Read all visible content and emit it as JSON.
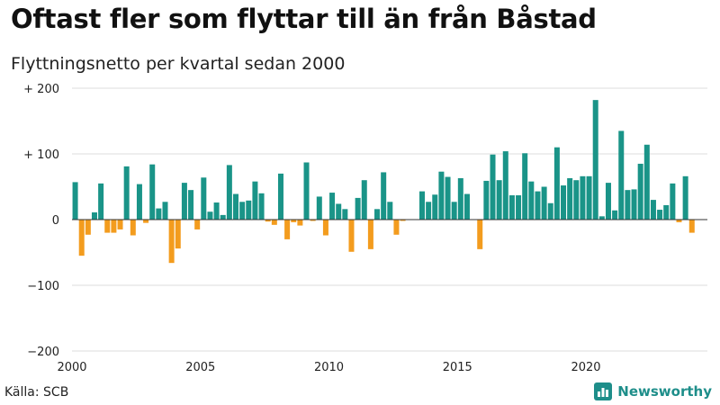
{
  "title": "Oftast fler som flyttar till än från Båstad",
  "subtitle": "Flyttningsnetto per kvartal sedan 2000",
  "source": "Källa: SCB",
  "brand": {
    "name": "Newsworthy",
    "icon": "bar-chart-logo-icon"
  },
  "colors": {
    "positive": "#1a9488",
    "negative": "#f39c1e",
    "grid": "#dddddd",
    "zero": "#333333"
  },
  "chart_data": {
    "type": "bar",
    "title": "Oftast fler som flyttar till än från Båstad",
    "subtitle": "Flyttningsnetto per kvartal sedan 2000",
    "x_ticks": [
      "2000",
      "2005",
      "2010",
      "2015",
      "2020"
    ],
    "y_ticks": [
      "+ 200",
      "+ 100",
      "0",
      "−100",
      "−200"
    ],
    "ylim": [
      -200,
      200
    ],
    "xlim": [
      2000,
      2024.75
    ],
    "grid": true,
    "start": "2000 Q1",
    "frequency": "quarterly",
    "values": [
      57,
      -55,
      -23,
      11,
      55,
      -20,
      -20,
      -15,
      81,
      -24,
      54,
      -5,
      84,
      17,
      27,
      -66,
      -44,
      56,
      45,
      -15,
      64,
      12,
      26,
      7,
      83,
      39,
      27,
      29,
      58,
      40,
      -3,
      -8,
      70,
      -30,
      -4,
      -9,
      87,
      -2,
      35,
      -24,
      41,
      24,
      16,
      -49,
      33,
      60,
      -45,
      16,
      72,
      27,
      -23,
      -2,
      0,
      0,
      43,
      27,
      38,
      73,
      65,
      27,
      63,
      39,
      0,
      -45,
      59,
      99,
      60,
      104,
      37,
      37,
      101,
      58,
      43,
      50,
      25,
      110,
      52,
      63,
      60,
      66,
      66,
      182,
      5,
      56,
      14,
      135,
      45,
      46,
      85,
      114,
      30,
      15,
      22,
      55,
      -4,
      66,
      -20
    ]
  }
}
